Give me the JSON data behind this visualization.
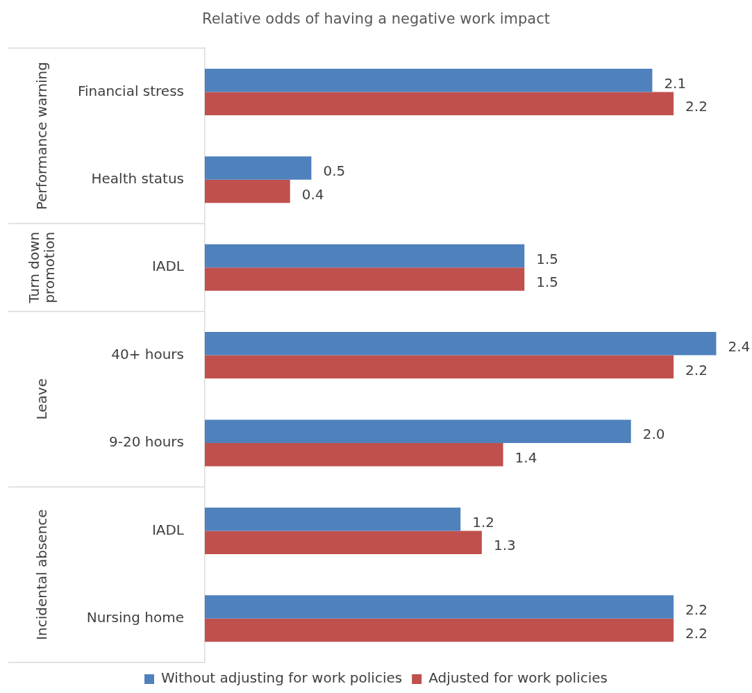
{
  "chart_data": {
    "type": "bar",
    "orientation": "horizontal",
    "title": "Relative odds of having a negative work impact",
    "categories": [
      "Financial stress",
      "Health status",
      "IADL",
      "40+ hours",
      "9-20 hours",
      "IADL",
      "Nursing home"
    ],
    "series": [
      {
        "name": "Without adjusting for work policies",
        "color": "#4f81bd",
        "values": [
          2.1,
          0.5,
          1.5,
          2.4,
          2.0,
          1.2,
          2.2
        ],
        "value_labels": [
          "2.1",
          "0.5",
          "1.5",
          "2.4",
          "2.0",
          "1.2",
          "2.2"
        ]
      },
      {
        "name": "Adjusted for work policies",
        "color": "#c0504d",
        "values": [
          2.2,
          0.4,
          1.5,
          2.2,
          1.4,
          1.3,
          2.2
        ],
        "value_labels": [
          "2.2",
          "0.4",
          "1.5",
          "2.2",
          "1.4",
          "1.3",
          "2.2"
        ]
      }
    ],
    "annotations": [
      "Performance warning",
      "Turn down promotion",
      "Leave",
      "Incidental absence"
    ],
    "legend": "bottom"
  }
}
